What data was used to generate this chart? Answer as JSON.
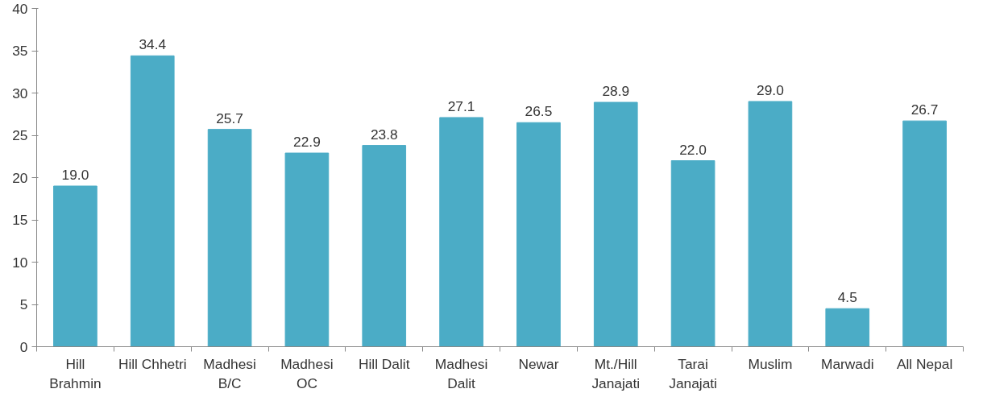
{
  "chart_data": {
    "type": "bar",
    "categories": [
      "Hill\nBrahmin",
      "Hill Chhetri",
      "Madhesi\nB/C",
      "Madhesi\nOC",
      "Hill Dalit",
      "Madhesi\nDalit",
      "Newar",
      "Mt./Hill\nJanajati",
      "Tarai\nJanajati",
      "Muslim",
      "Marwadi",
      "All Nepal"
    ],
    "values": [
      19.0,
      34.4,
      25.7,
      22.9,
      23.8,
      27.1,
      26.5,
      28.9,
      22.0,
      29.0,
      4.5,
      26.7
    ],
    "value_labels": [
      "19.0",
      "34.4",
      "25.7",
      "22.9",
      "23.8",
      "27.1",
      "26.5",
      "28.9",
      "22.0",
      "29.0",
      "4.5",
      "26.7"
    ],
    "color": "#4bacc6",
    "ylim": [
      0,
      40
    ],
    "yticks": [
      0,
      5,
      10,
      15,
      20,
      25,
      30,
      35,
      40
    ],
    "grid": false
  }
}
